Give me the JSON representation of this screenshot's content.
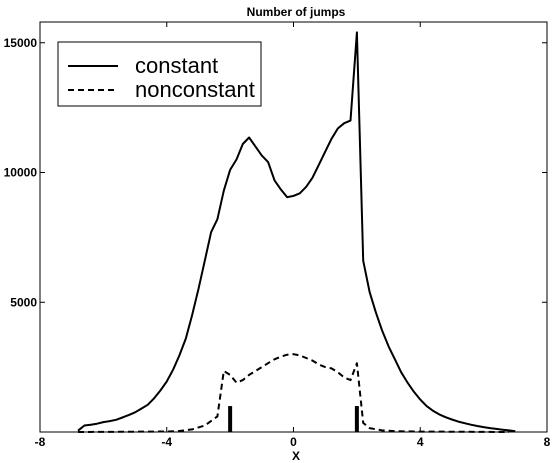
{
  "chart_data": {
    "type": "line",
    "title": "Number of jumps",
    "xlabel": "X",
    "ylabel": "",
    "xlim": [
      -8,
      8
    ],
    "ylim": [
      0,
      15800
    ],
    "x_ticks": [
      -8,
      -4,
      0,
      4,
      8
    ],
    "y_ticks": [
      5000,
      10000,
      15000
    ],
    "legend_position": "top-left",
    "grid": false,
    "series": [
      {
        "name": "constant",
        "style": "solid",
        "color": "#000000",
        "points": [
          [
            -6.8,
            50
          ],
          [
            -6.6,
            250
          ],
          [
            -6.4,
            280
          ],
          [
            -6.2,
            320
          ],
          [
            -6.0,
            380
          ],
          [
            -5.8,
            420
          ],
          [
            -5.6,
            470
          ],
          [
            -5.4,
            560
          ],
          [
            -5.2,
            650
          ],
          [
            -5.0,
            760
          ],
          [
            -4.8,
            900
          ],
          [
            -4.6,
            1050
          ],
          [
            -4.4,
            1300
          ],
          [
            -4.2,
            1600
          ],
          [
            -4.0,
            1950
          ],
          [
            -3.8,
            2400
          ],
          [
            -3.6,
            2950
          ],
          [
            -3.4,
            3600
          ],
          [
            -3.2,
            4500
          ],
          [
            -3.0,
            5500
          ],
          [
            -2.8,
            6600
          ],
          [
            -2.6,
            7700
          ],
          [
            -2.4,
            8200
          ],
          [
            -2.2,
            9300
          ],
          [
            -2.0,
            10100
          ],
          [
            -1.8,
            10500
          ],
          [
            -1.6,
            11100
          ],
          [
            -1.4,
            11350
          ],
          [
            -1.2,
            11000
          ],
          [
            -1.0,
            10650
          ],
          [
            -0.8,
            10400
          ],
          [
            -0.6,
            9700
          ],
          [
            -0.4,
            9350
          ],
          [
            -0.2,
            9050
          ],
          [
            0.0,
            9100
          ],
          [
            0.2,
            9200
          ],
          [
            0.4,
            9450
          ],
          [
            0.6,
            9800
          ],
          [
            0.8,
            10300
          ],
          [
            1.0,
            10800
          ],
          [
            1.2,
            11300
          ],
          [
            1.4,
            11700
          ],
          [
            1.6,
            11900
          ],
          [
            1.8,
            12000
          ],
          [
            2.0,
            15400
          ],
          [
            2.2,
            6600
          ],
          [
            2.4,
            5400
          ],
          [
            2.6,
            4600
          ],
          [
            2.8,
            3900
          ],
          [
            3.0,
            3300
          ],
          [
            3.2,
            2800
          ],
          [
            3.4,
            2300
          ],
          [
            3.6,
            1900
          ],
          [
            3.8,
            1550
          ],
          [
            4.0,
            1250
          ],
          [
            4.2,
            1000
          ],
          [
            4.4,
            820
          ],
          [
            4.6,
            680
          ],
          [
            4.8,
            570
          ],
          [
            5.0,
            480
          ],
          [
            5.2,
            400
          ],
          [
            5.4,
            340
          ],
          [
            5.6,
            280
          ],
          [
            5.8,
            230
          ],
          [
            6.0,
            190
          ],
          [
            6.2,
            150
          ],
          [
            6.4,
            120
          ],
          [
            6.6,
            90
          ],
          [
            6.8,
            60
          ],
          [
            7.0,
            30
          ]
        ]
      },
      {
        "name": "nonconstant",
        "style": "dashed",
        "color": "#000000",
        "points": [
          [
            -6.8,
            0
          ],
          [
            -6.0,
            5
          ],
          [
            -5.0,
            10
          ],
          [
            -4.0,
            20
          ],
          [
            -3.6,
            40
          ],
          [
            -3.2,
            100
          ],
          [
            -2.8,
            250
          ],
          [
            -2.4,
            600
          ],
          [
            -2.2,
            2350
          ],
          [
            -2.0,
            2200
          ],
          [
            -1.8,
            1900
          ],
          [
            -1.6,
            2000
          ],
          [
            -1.4,
            2200
          ],
          [
            -1.2,
            2350
          ],
          [
            -1.0,
            2500
          ],
          [
            -0.8,
            2650
          ],
          [
            -0.6,
            2800
          ],
          [
            -0.4,
            2900
          ],
          [
            -0.2,
            2980
          ],
          [
            0.0,
            3000
          ],
          [
            0.2,
            2950
          ],
          [
            0.4,
            2850
          ],
          [
            0.6,
            2750
          ],
          [
            0.8,
            2600
          ],
          [
            1.0,
            2500
          ],
          [
            1.2,
            2450
          ],
          [
            1.4,
            2300
          ],
          [
            1.6,
            2100
          ],
          [
            1.8,
            2000
          ],
          [
            2.0,
            2650
          ],
          [
            2.2,
            350
          ],
          [
            2.4,
            150
          ],
          [
            2.8,
            60
          ],
          [
            3.2,
            30
          ],
          [
            4.0,
            15
          ],
          [
            5.0,
            10
          ],
          [
            6.0,
            5
          ],
          [
            6.8,
            0
          ]
        ]
      }
    ],
    "markers": [
      {
        "x": -2.0,
        "y": 1000
      },
      {
        "x": 2.0,
        "y": 1000
      }
    ]
  }
}
